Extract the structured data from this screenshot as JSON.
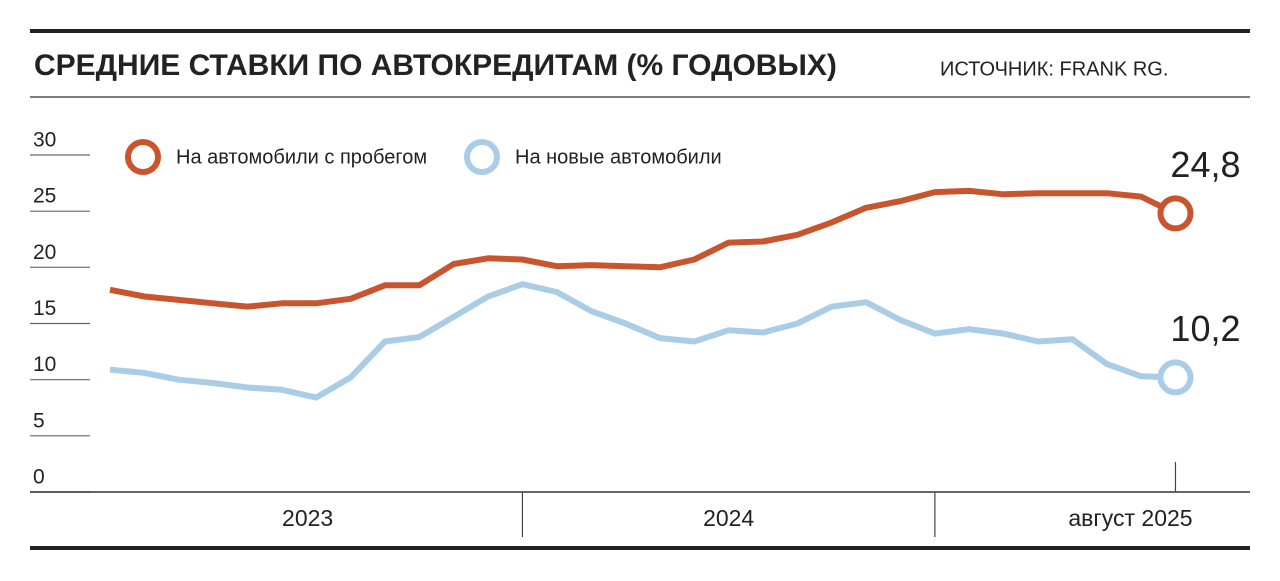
{
  "chart_data": {
    "type": "line",
    "title": "СРЕДНИЕ СТАВКИ ПО АВТОКРЕДИТАМ (% ГОДОВЫХ)",
    "source": "ИСТОЧНИК: FRANK RG.",
    "x_labels": [
      "2023",
      "2024",
      "август 2025"
    ],
    "ylim": [
      0,
      30
    ],
    "yticks": [
      0,
      5,
      10,
      15,
      20,
      25,
      30
    ],
    "series": [
      {
        "name": "На автомобили с пробегом",
        "color": "#c8552e",
        "last_label": "24,8",
        "values": [
          18.0,
          17.4,
          17.1,
          16.8,
          16.5,
          16.8,
          16.8,
          17.2,
          18.4,
          18.4,
          20.3,
          20.8,
          20.7,
          20.1,
          20.2,
          20.1,
          20.0,
          20.7,
          22.2,
          22.3,
          22.9,
          24.0,
          25.3,
          25.9,
          26.7,
          26.8,
          26.5,
          26.6,
          26.6,
          26.6,
          26.3,
          24.8
        ]
      },
      {
        "name": "На новые автомобили",
        "color": "#a9cde6",
        "last_label": "10,2",
        "values": [
          10.9,
          10.6,
          10.0,
          9.7,
          9.3,
          9.1,
          8.4,
          10.2,
          13.4,
          13.8,
          15.6,
          17.4,
          18.5,
          17.8,
          16.1,
          15.0,
          13.7,
          13.4,
          14.4,
          14.2,
          15.0,
          16.5,
          16.9,
          15.3,
          14.1,
          14.5,
          14.1,
          13.4,
          13.6,
          11.4,
          10.3,
          10.2
        ]
      }
    ]
  }
}
